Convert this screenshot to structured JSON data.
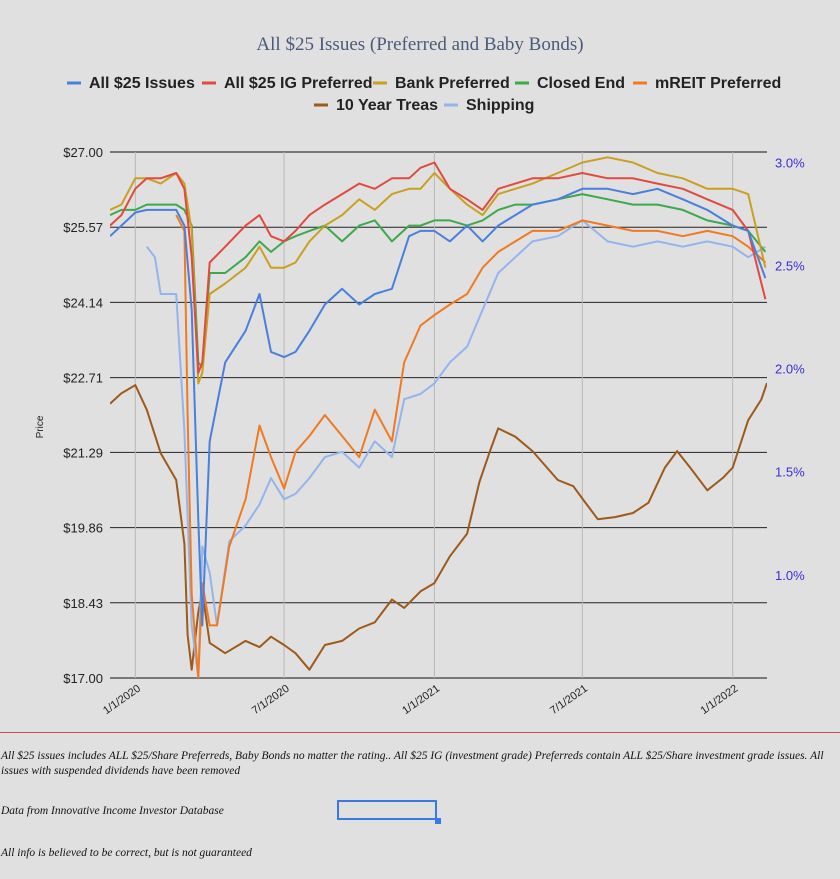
{
  "chart_data": {
    "type": "line",
    "title": "All $25 Issues (Preferred and Baby Bonds)",
    "ylabel": "Price",
    "ylim": [
      17.0,
      27.0
    ],
    "y2lim": [
      0.5,
      3.05
    ],
    "y_ticks": [
      "$27.00",
      "$25.57",
      "$24.14",
      "$22.71",
      "$21.29",
      "$19.86",
      "$18.43",
      "$17.00"
    ],
    "y_tick_values": [
      27.0,
      25.57,
      24.14,
      22.71,
      21.29,
      19.86,
      18.43,
      17.0
    ],
    "y2_ticks": [
      "3.0%",
      "2.5%",
      "2.0%",
      "1.5%",
      "1.0%"
    ],
    "y2_tick_values": [
      3.0,
      2.5,
      2.0,
      1.5,
      1.0
    ],
    "x_ticks": [
      "1/1/2020",
      "7/1/2020",
      "1/1/2021",
      "7/1/2021",
      "1/1/2022"
    ],
    "x_tick_values": [
      "2020-01-01",
      "2020-07-01",
      "2021-01-01",
      "2021-07-01",
      "2022-01-01"
    ],
    "xlim": [
      "2019-12-01",
      "2022-02-12"
    ],
    "grid": "horizontal at price ticks, vertical at date ticks",
    "legend_position": "top",
    "series": [
      {
        "name": "All $25 Issues",
        "color": "#4a7fdc",
        "axis": "left",
        "x": [
          "2019-12-01",
          "2019-12-15",
          "2020-01-01",
          "2020-01-15",
          "2020-02-01",
          "2020-02-20",
          "2020-03-01",
          "2020-03-10",
          "2020-03-18",
          "2020-03-23",
          "2020-04-01",
          "2020-04-20",
          "2020-05-15",
          "2020-06-01",
          "2020-06-15",
          "2020-07-01",
          "2020-07-15",
          "2020-08-01",
          "2020-08-20",
          "2020-09-10",
          "2020-10-01",
          "2020-10-20",
          "2020-11-10",
          "2020-12-01",
          "2020-12-15",
          "2021-01-01",
          "2021-01-20",
          "2021-02-10",
          "2021-03-01",
          "2021-03-20",
          "2021-04-10",
          "2021-05-01",
          "2021-06-01",
          "2021-07-01",
          "2021-08-01",
          "2021-09-01",
          "2021-10-01",
          "2021-11-01",
          "2021-12-01",
          "2022-01-01",
          "2022-01-20",
          "2022-02-10"
        ],
        "y": [
          25.4,
          25.6,
          25.85,
          25.9,
          25.9,
          25.9,
          25.6,
          24.0,
          20.0,
          18.0,
          21.5,
          23.0,
          23.6,
          24.3,
          23.2,
          23.1,
          23.2,
          23.6,
          24.1,
          24.4,
          24.1,
          24.3,
          24.4,
          25.4,
          25.5,
          25.5,
          25.3,
          25.6,
          25.3,
          25.6,
          25.8,
          26.0,
          26.1,
          26.3,
          26.3,
          26.2,
          26.3,
          26.1,
          25.9,
          25.6,
          25.5,
          24.6
        ]
      },
      {
        "name": "All $25 IG Preferred",
        "color": "#e04a3f",
        "axis": "left",
        "x": [
          "2019-12-01",
          "2019-12-15",
          "2020-01-01",
          "2020-01-15",
          "2020-02-01",
          "2020-02-20",
          "2020-03-01",
          "2020-03-10",
          "2020-03-18",
          "2020-03-23",
          "2020-04-01",
          "2020-04-20",
          "2020-05-15",
          "2020-06-01",
          "2020-06-15",
          "2020-07-01",
          "2020-07-15",
          "2020-08-01",
          "2020-08-20",
          "2020-09-10",
          "2020-10-01",
          "2020-10-20",
          "2020-11-10",
          "2020-12-01",
          "2020-12-15",
          "2021-01-01",
          "2021-01-20",
          "2021-02-10",
          "2021-03-01",
          "2021-03-20",
          "2021-04-10",
          "2021-05-01",
          "2021-06-01",
          "2021-07-01",
          "2021-08-01",
          "2021-09-01",
          "2021-10-01",
          "2021-11-01",
          "2021-12-01",
          "2022-01-01",
          "2022-01-20",
          "2022-02-10"
        ],
        "y": [
          25.6,
          25.8,
          26.3,
          26.5,
          26.5,
          26.6,
          26.3,
          25.0,
          22.8,
          23.0,
          24.9,
          25.2,
          25.6,
          25.8,
          25.4,
          25.3,
          25.5,
          25.8,
          26.0,
          26.2,
          26.4,
          26.3,
          26.5,
          26.5,
          26.7,
          26.8,
          26.3,
          26.1,
          25.9,
          26.3,
          26.4,
          26.5,
          26.5,
          26.6,
          26.5,
          26.5,
          26.4,
          26.3,
          26.1,
          25.9,
          25.5,
          24.2
        ]
      },
      {
        "name": "Bank Preferred",
        "color": "#c9a021",
        "axis": "left",
        "x": [
          "2019-12-01",
          "2019-12-15",
          "2020-01-01",
          "2020-01-15",
          "2020-02-01",
          "2020-02-20",
          "2020-03-01",
          "2020-03-10",
          "2020-03-18",
          "2020-03-23",
          "2020-04-01",
          "2020-04-20",
          "2020-05-15",
          "2020-06-01",
          "2020-06-15",
          "2020-07-01",
          "2020-07-15",
          "2020-08-01",
          "2020-08-20",
          "2020-09-10",
          "2020-10-01",
          "2020-10-20",
          "2020-11-10",
          "2020-12-01",
          "2020-12-15",
          "2021-01-01",
          "2021-01-20",
          "2021-02-10",
          "2021-03-01",
          "2021-03-20",
          "2021-04-10",
          "2021-05-01",
          "2021-06-01",
          "2021-07-01",
          "2021-08-01",
          "2021-09-01",
          "2021-10-01",
          "2021-11-01",
          "2021-12-01",
          "2022-01-01",
          "2022-01-20",
          "2022-02-10"
        ],
        "y": [
          25.9,
          26.0,
          26.5,
          26.5,
          26.4,
          26.6,
          26.4,
          25.5,
          22.6,
          22.8,
          24.3,
          24.5,
          24.8,
          25.2,
          24.8,
          24.8,
          24.9,
          25.3,
          25.6,
          25.8,
          26.1,
          25.9,
          26.2,
          26.3,
          26.3,
          26.6,
          26.3,
          26.0,
          25.8,
          26.2,
          26.3,
          26.4,
          26.6,
          26.8,
          26.9,
          26.8,
          26.6,
          26.5,
          26.3,
          26.3,
          26.2,
          24.8
        ]
      },
      {
        "name": "Closed End",
        "color": "#3ea84d",
        "axis": "left",
        "x": [
          "2019-12-01",
          "2019-12-15",
          "2020-01-01",
          "2020-01-15",
          "2020-02-01",
          "2020-02-20",
          "2020-03-01",
          "2020-03-10",
          "2020-03-18",
          "2020-03-23",
          "2020-04-01",
          "2020-04-20",
          "2020-05-15",
          "2020-06-01",
          "2020-06-15",
          "2020-07-01",
          "2020-07-15",
          "2020-08-01",
          "2020-08-20",
          "2020-09-10",
          "2020-10-01",
          "2020-10-20",
          "2020-11-10",
          "2020-12-01",
          "2020-12-15",
          "2021-01-01",
          "2021-01-20",
          "2021-02-10",
          "2021-03-01",
          "2021-03-20",
          "2021-04-10",
          "2021-05-01",
          "2021-06-01",
          "2021-07-01",
          "2021-08-01",
          "2021-09-01",
          "2021-10-01",
          "2021-11-01",
          "2021-12-01",
          "2022-01-01",
          "2022-01-20",
          "2022-02-10"
        ],
        "y": [
          25.8,
          25.9,
          25.9,
          26.0,
          26.0,
          26.0,
          25.9,
          25.6,
          23.0,
          22.9,
          24.7,
          24.7,
          25.0,
          25.3,
          25.1,
          25.3,
          25.4,
          25.5,
          25.6,
          25.3,
          25.6,
          25.7,
          25.3,
          25.6,
          25.6,
          25.7,
          25.7,
          25.6,
          25.7,
          25.9,
          26.0,
          26.0,
          26.1,
          26.2,
          26.1,
          26.0,
          26.0,
          25.9,
          25.7,
          25.6,
          25.5,
          25.1
        ]
      },
      {
        "name": "mREIT Preferred",
        "color": "#f07a22",
        "axis": "left",
        "x": [
          "2020-02-20",
          "2020-03-01",
          "2020-03-05",
          "2020-03-10",
          "2020-03-18",
          "2020-03-23",
          "2020-04-01",
          "2020-04-10",
          "2020-04-25",
          "2020-05-15",
          "2020-06-01",
          "2020-06-15",
          "2020-07-01",
          "2020-07-15",
          "2020-08-01",
          "2020-08-20",
          "2020-09-10",
          "2020-10-01",
          "2020-10-20",
          "2020-11-10",
          "2020-11-25",
          "2020-12-15",
          "2021-01-01",
          "2021-01-20",
          "2021-02-10",
          "2021-03-01",
          "2021-03-20",
          "2021-04-10",
          "2021-05-01",
          "2021-06-01",
          "2021-07-01",
          "2021-08-01",
          "2021-09-01",
          "2021-10-01",
          "2021-11-01",
          "2021-12-01",
          "2022-01-01",
          "2022-01-20",
          "2022-02-10"
        ],
        "y": [
          25.8,
          25.5,
          22.0,
          18.6,
          17.0,
          18.8,
          18.0,
          18.0,
          19.5,
          20.4,
          21.8,
          21.2,
          20.6,
          21.3,
          21.6,
          22.0,
          21.6,
          21.2,
          22.1,
          21.5,
          23.0,
          23.7,
          23.9,
          24.1,
          24.3,
          24.8,
          25.1,
          25.3,
          25.5,
          25.5,
          25.7,
          25.6,
          25.5,
          25.5,
          25.4,
          25.5,
          25.4,
          25.2,
          24.9
        ]
      },
      {
        "name": "10 Year Treas",
        "color": "#9c5a1c",
        "axis": "right",
        "x": [
          "2019-12-01",
          "2019-12-15",
          "2020-01-01",
          "2020-01-15",
          "2020-02-01",
          "2020-02-20",
          "2020-03-01",
          "2020-03-05",
          "2020-03-10",
          "2020-03-18",
          "2020-03-23",
          "2020-04-01",
          "2020-04-20",
          "2020-05-15",
          "2020-06-01",
          "2020-06-15",
          "2020-07-01",
          "2020-07-15",
          "2020-08-01",
          "2020-08-20",
          "2020-09-10",
          "2020-10-01",
          "2020-10-20",
          "2020-11-10",
          "2020-11-25",
          "2020-12-15",
          "2021-01-01",
          "2021-01-20",
          "2021-02-10",
          "2021-02-25",
          "2021-03-10",
          "2021-03-20",
          "2021-04-10",
          "2021-05-01",
          "2021-06-01",
          "2021-06-20",
          "2021-07-01",
          "2021-07-20",
          "2021-08-10",
          "2021-09-01",
          "2021-09-20",
          "2021-10-10",
          "2021-10-25",
          "2021-11-10",
          "2021-12-01",
          "2021-12-20",
          "2022-01-01",
          "2022-01-20",
          "2022-02-05",
          "2022-02-12"
        ],
        "y": [
          1.83,
          1.88,
          1.92,
          1.8,
          1.59,
          1.46,
          1.15,
          0.71,
          0.54,
          0.82,
          0.92,
          0.67,
          0.62,
          0.68,
          0.65,
          0.7,
          0.66,
          0.62,
          0.54,
          0.66,
          0.68,
          0.74,
          0.77,
          0.88,
          0.84,
          0.92,
          0.96,
          1.09,
          1.2,
          1.45,
          1.6,
          1.71,
          1.67,
          1.6,
          1.46,
          1.43,
          1.37,
          1.27,
          1.28,
          1.3,
          1.35,
          1.52,
          1.6,
          1.52,
          1.41,
          1.47,
          1.52,
          1.75,
          1.85,
          1.93
        ]
      },
      {
        "name": "Shipping",
        "color": "#94b4ec",
        "axis": "left",
        "x": [
          "2020-01-15",
          "2020-01-25",
          "2020-02-01",
          "2020-02-20",
          "2020-03-01",
          "2020-03-10",
          "2020-03-18",
          "2020-03-23",
          "2020-04-01",
          "2020-04-10",
          "2020-04-25",
          "2020-05-15",
          "2020-06-01",
          "2020-06-15",
          "2020-07-01",
          "2020-07-15",
          "2020-08-01",
          "2020-08-20",
          "2020-09-10",
          "2020-10-01",
          "2020-10-20",
          "2020-11-10",
          "2020-11-25",
          "2020-12-15",
          "2021-01-01",
          "2021-01-20",
          "2021-02-10",
          "2021-03-01",
          "2021-03-20",
          "2021-04-10",
          "2021-05-01",
          "2021-06-01",
          "2021-07-01",
          "2021-08-01",
          "2021-09-01",
          "2021-10-01",
          "2021-11-01",
          "2021-12-01",
          "2022-01-01",
          "2022-01-20",
          "2022-02-10"
        ],
        "y": [
          25.2,
          25.0,
          24.3,
          24.3,
          21.7,
          18.0,
          17.0,
          19.5,
          19.0,
          18.0,
          19.6,
          19.9,
          20.3,
          20.8,
          20.4,
          20.5,
          20.8,
          21.2,
          21.3,
          21.0,
          21.5,
          21.2,
          22.3,
          22.4,
          22.6,
          23.0,
          23.3,
          24.0,
          24.7,
          25.0,
          25.3,
          25.4,
          25.7,
          25.3,
          25.2,
          25.3,
          25.2,
          25.3,
          25.2,
          25.0,
          25.2
        ]
      }
    ]
  },
  "footer": {
    "note1": "All $25 issues includes ALL $25/Share Preferreds, Baby Bonds no matter the rating..  All $25 IG (investment grade) Preferreds contain ALL $25/Share investment grade issues.  All issues with suspended dividends have been removed",
    "note2": "Data from Innovative Income Investor Database",
    "note3": "All info is believed to be correct, but is not guaranteed"
  }
}
